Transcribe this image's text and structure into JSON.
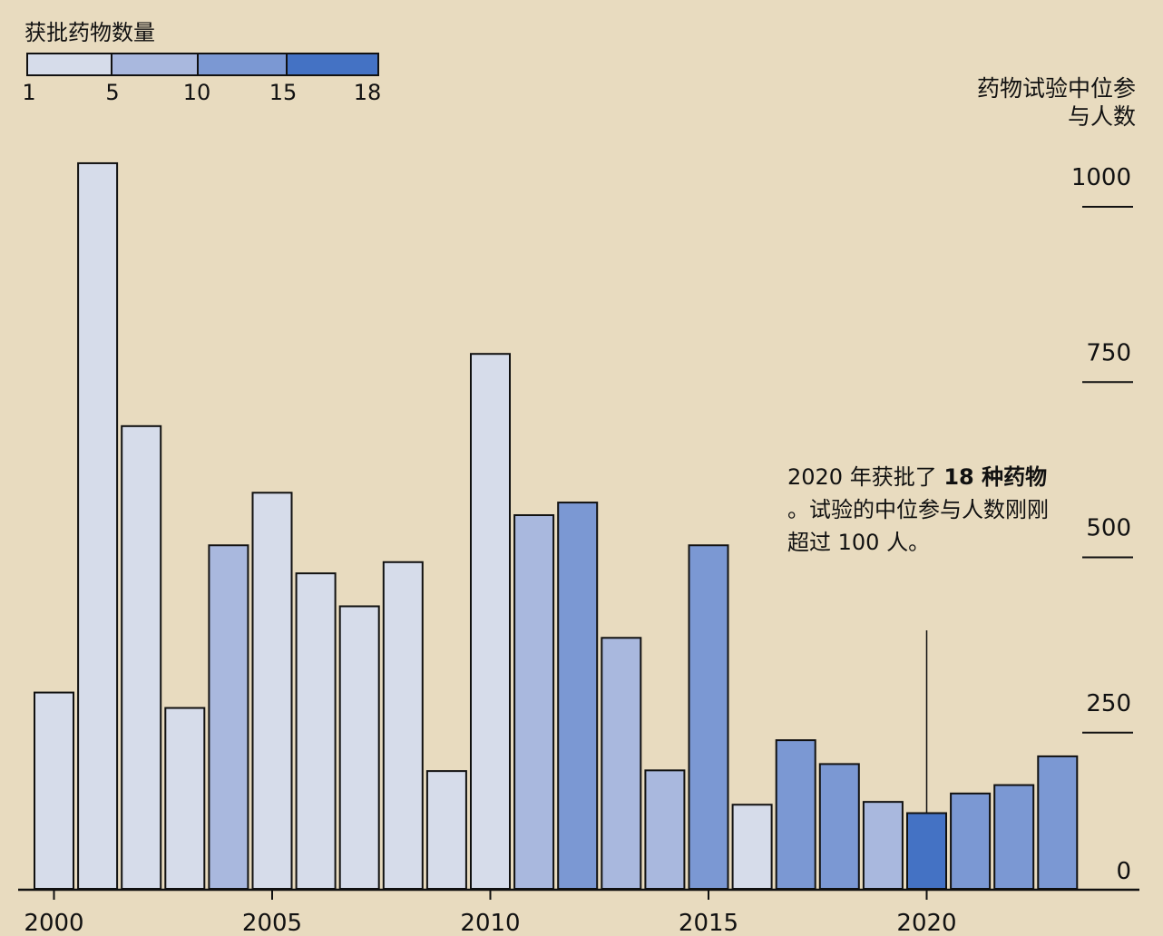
{
  "legend": {
    "title": "获批药物数量",
    "ticks": [
      "1",
      "5",
      "10",
      "15",
      "18"
    ],
    "segments": [
      {
        "from": 1,
        "to": 5,
        "color": "#d6dcea"
      },
      {
        "from": 5,
        "to": 10,
        "color": "#a9b8de"
      },
      {
        "from": 10,
        "to": 15,
        "color": "#7b98d3"
      },
      {
        "from": 15,
        "to": 18,
        "color": "#4472c4"
      }
    ]
  },
  "axis_title_line1": "药物试验中位参",
  "axis_title_line2": "与人数",
  "annotation": {
    "prefix": "2020 年获批了 ",
    "bold": "18 种药物",
    "suffix": " 。试验的中位参与人数刚刚超过 100 人。"
  },
  "chart_data": {
    "type": "bar",
    "title": "获批药物数量",
    "ylabel": "药物试验中位参与人数",
    "xlabel": "",
    "ylim": [
      0,
      1000
    ],
    "yticks": [
      0,
      250,
      500,
      750,
      1000
    ],
    "xticks": [
      2000,
      2005,
      2010,
      2015,
      2020
    ],
    "years": [
      2000,
      2001,
      2002,
      2003,
      2004,
      2005,
      2006,
      2007,
      2008,
      2009,
      2010,
      2011,
      2012,
      2013,
      2014,
      2015,
      2016,
      2017,
      2018,
      2019,
      2020,
      2021,
      2022,
      2023
    ],
    "values": [
      280,
      1035,
      660,
      258,
      490,
      565,
      450,
      403,
      466,
      168,
      763,
      533,
      551,
      358,
      169,
      490,
      120,
      212,
      178,
      124,
      108,
      136,
      148,
      189
    ],
    "color_bins": [
      1,
      1,
      1,
      1,
      2,
      1,
      1,
      1,
      1,
      1,
      1,
      2,
      3,
      2,
      2,
      3,
      1,
      3,
      3,
      2,
      4,
      3,
      3,
      3
    ],
    "bin_colors": [
      "#d6dcea",
      "#a9b8de",
      "#7b98d3",
      "#4472c4"
    ],
    "annotation_year": 2020
  }
}
